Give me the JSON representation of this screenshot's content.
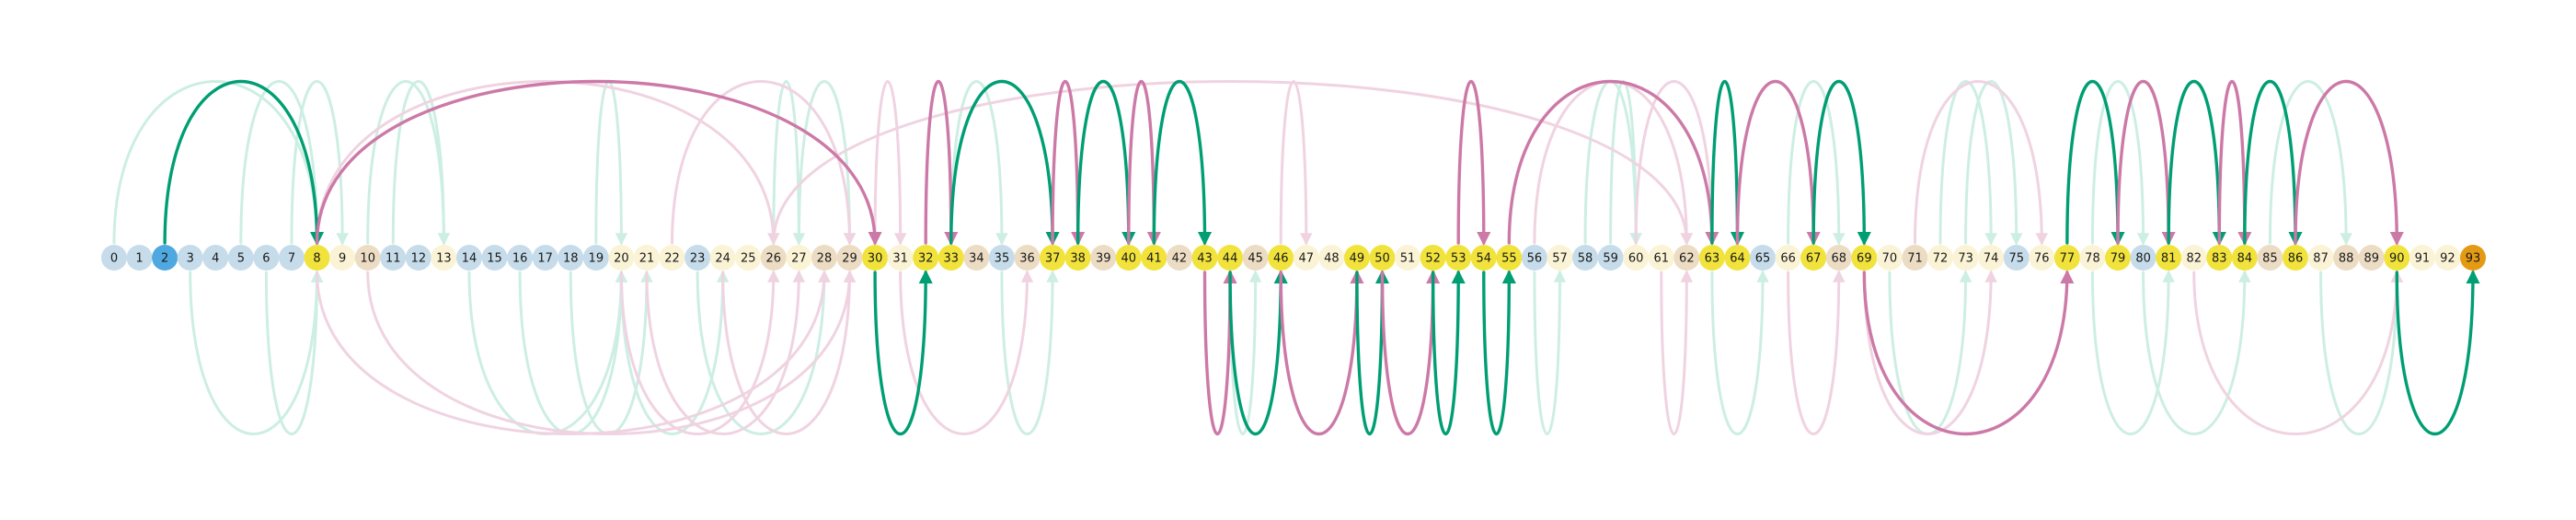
{
  "diagram": {
    "node_labels": [
      "0",
      "1",
      "2",
      "3",
      "4",
      "5",
      "6",
      "7",
      "8",
      "9",
      "10",
      "11",
      "12",
      "13",
      "14",
      "15",
      "16",
      "17",
      "18",
      "19",
      "20",
      "21",
      "22",
      "23",
      "24",
      "25",
      "26",
      "27",
      "28",
      "29",
      "30",
      "31",
      "32",
      "33",
      "34",
      "35",
      "36",
      "37",
      "38",
      "39",
      "40",
      "41",
      "42",
      "43",
      "44",
      "45",
      "46",
      "47",
      "48",
      "49",
      "50",
      "51",
      "52",
      "53",
      "54",
      "55",
      "56",
      "57",
      "58",
      "59",
      "60",
      "61",
      "62",
      "63",
      "64",
      "65",
      "66",
      "67",
      "68",
      "69",
      "70",
      "71",
      "72",
      "73",
      "74",
      "75",
      "76",
      "77",
      "78",
      "79",
      "80",
      "81",
      "82",
      "83",
      "84",
      "85",
      "86",
      "87",
      "88",
      "89",
      "90",
      "91",
      "92",
      "93"
    ],
    "node_categories": [
      "blue",
      "blue",
      "start",
      "blue",
      "blue",
      "blue",
      "blue",
      "blue",
      "gold",
      "cream",
      "tan",
      "blue",
      "blue",
      "cream",
      "blue",
      "blue",
      "blue",
      "blue",
      "blue",
      "blue",
      "cream",
      "cream",
      "cream",
      "blue",
      "cream",
      "cream",
      "tan",
      "cream",
      "tan",
      "tan",
      "gold",
      "cream",
      "gold",
      "gold",
      "tan",
      "blue",
      "tan",
      "gold",
      "gold",
      "tan",
      "gold",
      "gold",
      "tan",
      "gold",
      "gold",
      "tan",
      "gold",
      "cream",
      "cream",
      "gold",
      "gold",
      "cream",
      "gold",
      "gold",
      "gold",
      "gold",
      "blue",
      "cream",
      "blue",
      "blue",
      "cream",
      "cream",
      "tan",
      "gold",
      "gold",
      "blue",
      "cream",
      "gold",
      "tan",
      "gold",
      "cream",
      "tan",
      "cream",
      "cream",
      "cream",
      "blue",
      "cream",
      "gold",
      "cream",
      "gold",
      "blue",
      "gold",
      "cream",
      "gold",
      "gold",
      "tan",
      "gold",
      "cream",
      "tan",
      "tan",
      "gold",
      "cream",
      "cream",
      "end"
    ],
    "category_colors": {
      "blue": "#c6dcea",
      "cream": "#fbf3d5",
      "tan": "#ecdcc3",
      "gold": "#f1e33b",
      "start": "#4fa8e0",
      "end": "#e59a14"
    },
    "edge_colors": {
      "green": "#009e73",
      "pink": "#cc79a7",
      "green_faint": "#cdeee3",
      "pink_faint": "#f0d3e1"
    },
    "edges": [
      {
        "from": 2,
        "to": 8,
        "side": "top",
        "color": "green",
        "strong": true
      },
      {
        "from": 8,
        "to": 30,
        "side": "top",
        "color": "pink",
        "strong": true
      },
      {
        "from": 30,
        "to": 32,
        "side": "bottom",
        "color": "green",
        "strong": true
      },
      {
        "from": 32,
        "to": 33,
        "side": "top",
        "color": "pink",
        "strong": true
      },
      {
        "from": 33,
        "to": 37,
        "side": "top",
        "color": "green",
        "strong": true
      },
      {
        "from": 37,
        "to": 38,
        "side": "top",
        "color": "pink",
        "strong": true
      },
      {
        "from": 38,
        "to": 40,
        "side": "top",
        "color": "green",
        "strong": true
      },
      {
        "from": 40,
        "to": 41,
        "side": "top",
        "color": "pink",
        "strong": true
      },
      {
        "from": 41,
        "to": 43,
        "side": "top",
        "color": "green",
        "strong": true
      },
      {
        "from": 43,
        "to": 44,
        "side": "bottom",
        "color": "pink",
        "strong": true
      },
      {
        "from": 44,
        "to": 46,
        "side": "bottom",
        "color": "green",
        "strong": true
      },
      {
        "from": 46,
        "to": 49,
        "side": "bottom",
        "color": "pink",
        "strong": true
      },
      {
        "from": 49,
        "to": 50,
        "side": "bottom",
        "color": "green",
        "strong": true
      },
      {
        "from": 50,
        "to": 52,
        "side": "bottom",
        "color": "pink",
        "strong": true
      },
      {
        "from": 52,
        "to": 53,
        "side": "bottom",
        "color": "green",
        "strong": true
      },
      {
        "from": 53,
        "to": 54,
        "side": "top",
        "color": "pink",
        "strong": true
      },
      {
        "from": 54,
        "to": 55,
        "side": "bottom",
        "color": "green",
        "strong": true
      },
      {
        "from": 55,
        "to": 63,
        "side": "top",
        "color": "pink",
        "strong": true
      },
      {
        "from": 63,
        "to": 64,
        "side": "top",
        "color": "green",
        "strong": true
      },
      {
        "from": 64,
        "to": 67,
        "side": "top",
        "color": "pink",
        "strong": true
      },
      {
        "from": 67,
        "to": 69,
        "side": "top",
        "color": "green",
        "strong": true
      },
      {
        "from": 69,
        "to": 77,
        "side": "bottom",
        "color": "pink",
        "strong": true
      },
      {
        "from": 77,
        "to": 79,
        "side": "top",
        "color": "green",
        "strong": true
      },
      {
        "from": 79,
        "to": 81,
        "side": "top",
        "color": "pink",
        "strong": true
      },
      {
        "from": 81,
        "to": 83,
        "side": "top",
        "color": "green",
        "strong": true
      },
      {
        "from": 83,
        "to": 84,
        "side": "top",
        "color": "pink",
        "strong": true
      },
      {
        "from": 84,
        "to": 86,
        "side": "top",
        "color": "green",
        "strong": true
      },
      {
        "from": 86,
        "to": 90,
        "side": "top",
        "color": "pink",
        "strong": true
      },
      {
        "from": 90,
        "to": 93,
        "side": "bottom",
        "color": "green",
        "strong": true
      },
      {
        "from": 0,
        "to": 8,
        "side": "top",
        "color": "green_faint",
        "strong": false
      },
      {
        "from": 5,
        "to": 8,
        "side": "top",
        "color": "green_faint",
        "strong": false
      },
      {
        "from": 7,
        "to": 9,
        "side": "top",
        "color": "green_faint",
        "strong": false
      },
      {
        "from": 10,
        "to": 13,
        "side": "top",
        "color": "green_faint",
        "strong": false
      },
      {
        "from": 11,
        "to": 13,
        "side": "top",
        "color": "green_faint",
        "strong": false
      },
      {
        "from": 19,
        "to": 20,
        "side": "top",
        "color": "green_faint",
        "strong": false
      },
      {
        "from": 26,
        "to": 27,
        "side": "top",
        "color": "green_faint",
        "strong": false
      },
      {
        "from": 27,
        "to": 29,
        "side": "top",
        "color": "green_faint",
        "strong": false
      },
      {
        "from": 33,
        "to": 35,
        "side": "top",
        "color": "green_faint",
        "strong": false
      },
      {
        "from": 58,
        "to": 60,
        "side": "top",
        "color": "green_faint",
        "strong": false
      },
      {
        "from": 59,
        "to": 60,
        "side": "top",
        "color": "green_faint",
        "strong": false
      },
      {
        "from": 66,
        "to": 68,
        "side": "top",
        "color": "green_faint",
        "strong": false
      },
      {
        "from": 72,
        "to": 74,
        "side": "top",
        "color": "green_faint",
        "strong": false
      },
      {
        "from": 73,
        "to": 75,
        "side": "top",
        "color": "green_faint",
        "strong": false
      },
      {
        "from": 78,
        "to": 80,
        "side": "top",
        "color": "green_faint",
        "strong": false
      },
      {
        "from": 85,
        "to": 88,
        "side": "top",
        "color": "green_faint",
        "strong": false
      },
      {
        "from": 8,
        "to": 26,
        "side": "top",
        "color": "pink_faint",
        "strong": false
      },
      {
        "from": 26,
        "to": 62,
        "side": "top",
        "color": "pink_faint",
        "strong": false
      },
      {
        "from": 22,
        "to": 29,
        "side": "top",
        "color": "pink_faint",
        "strong": false
      },
      {
        "from": 30,
        "to": 31,
        "side": "top",
        "color": "pink_faint",
        "strong": false
      },
      {
        "from": 46,
        "to": 47,
        "side": "top",
        "color": "pink_faint",
        "strong": false
      },
      {
        "from": 56,
        "to": 62,
        "side": "top",
        "color": "pink_faint",
        "strong": false
      },
      {
        "from": 60,
        "to": 63,
        "side": "top",
        "color": "pink_faint",
        "strong": false
      },
      {
        "from": 71,
        "to": 76,
        "side": "top",
        "color": "pink_faint",
        "strong": false
      },
      {
        "from": 3,
        "to": 8,
        "side": "bottom",
        "color": "green_faint",
        "strong": false
      },
      {
        "from": 6,
        "to": 8,
        "side": "bottom",
        "color": "green_faint",
        "strong": false
      },
      {
        "from": 14,
        "to": 20,
        "side": "bottom",
        "color": "green_faint",
        "strong": false
      },
      {
        "from": 16,
        "to": 20,
        "side": "bottom",
        "color": "green_faint",
        "strong": false
      },
      {
        "from": 18,
        "to": 21,
        "side": "bottom",
        "color": "green_faint",
        "strong": false
      },
      {
        "from": 20,
        "to": 24,
        "side": "bottom",
        "color": "green_faint",
        "strong": false
      },
      {
        "from": 23,
        "to": 28,
        "side": "bottom",
        "color": "green_faint",
        "strong": false
      },
      {
        "from": 35,
        "to": 37,
        "side": "bottom",
        "color": "green_faint",
        "strong": false
      },
      {
        "from": 44,
        "to": 45,
        "side": "bottom",
        "color": "green_faint",
        "strong": false
      },
      {
        "from": 56,
        "to": 57,
        "side": "bottom",
        "color": "green_faint",
        "strong": false
      },
      {
        "from": 63,
        "to": 65,
        "side": "bottom",
        "color": "green_faint",
        "strong": false
      },
      {
        "from": 70,
        "to": 73,
        "side": "bottom",
        "color": "green_faint",
        "strong": false
      },
      {
        "from": 78,
        "to": 81,
        "side": "bottom",
        "color": "green_faint",
        "strong": false
      },
      {
        "from": 80,
        "to": 84,
        "side": "bottom",
        "color": "green_faint",
        "strong": false
      },
      {
        "from": 87,
        "to": 90,
        "side": "bottom",
        "color": "green_faint",
        "strong": false
      },
      {
        "from": 8,
        "to": 28,
        "side": "bottom",
        "color": "pink_faint",
        "strong": false
      },
      {
        "from": 10,
        "to": 29,
        "side": "bottom",
        "color": "pink_faint",
        "strong": false
      },
      {
        "from": 20,
        "to": 26,
        "side": "bottom",
        "color": "pink_faint",
        "strong": false
      },
      {
        "from": 21,
        "to": 27,
        "side": "bottom",
        "color": "pink_faint",
        "strong": false
      },
      {
        "from": 24,
        "to": 29,
        "side": "bottom",
        "color": "pink_faint",
        "strong": false
      },
      {
        "from": 31,
        "to": 36,
        "side": "bottom",
        "color": "pink_faint",
        "strong": false
      },
      {
        "from": 61,
        "to": 62,
        "side": "bottom",
        "color": "pink_faint",
        "strong": false
      },
      {
        "from": 66,
        "to": 68,
        "side": "bottom",
        "color": "pink_faint",
        "strong": false
      },
      {
        "from": 69,
        "to": 74,
        "side": "bottom",
        "color": "pink_faint",
        "strong": false
      },
      {
        "from": 82,
        "to": 90,
        "side": "bottom",
        "color": "pink_faint",
        "strong": false
      }
    ]
  }
}
